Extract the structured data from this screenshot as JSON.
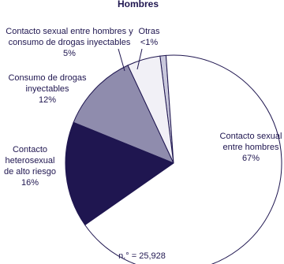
{
  "chart_data": {
    "type": "pie",
    "title": "Hombres",
    "categories": [
      "Contacto sexual entre hombres",
      "Contacto heterosexual de alto riesgo",
      "Consumo de drogas inyectables",
      "Contacto sexual entre hombres y consumo de drogas inyectables",
      "Otras"
    ],
    "values": [
      67,
      16,
      12,
      5,
      0.9
    ],
    "value_labels": [
      "67%",
      "16%",
      "12%",
      "5%",
      "<1%"
    ],
    "colors": [
      "#ffffff",
      "#1f1650",
      "#8f8cad",
      "#f1f0f6",
      "#c9c8dc"
    ],
    "note": "n.° = 25,928"
  }
}
